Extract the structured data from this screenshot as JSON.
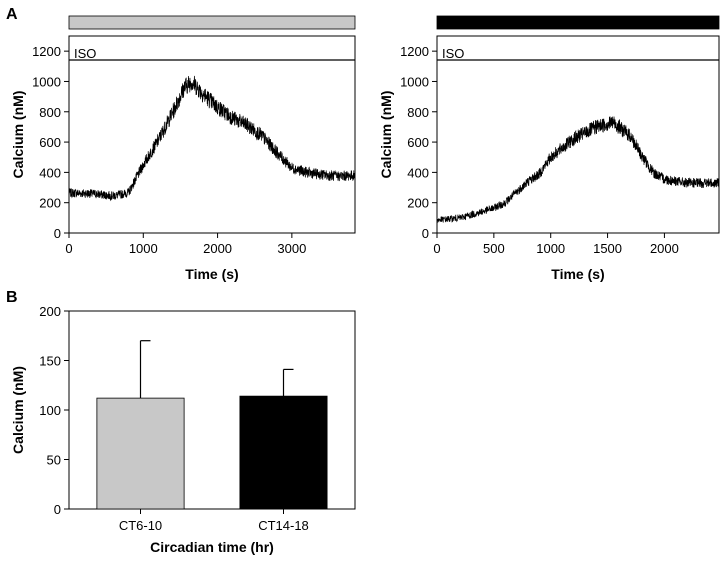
{
  "panels": {
    "a_label": "A",
    "b_label": "B"
  },
  "chart_data": [
    {
      "id": "A-left",
      "type": "line",
      "header_bar_color": "#c8c8c8",
      "annotation": "ISO",
      "xlabel": "Time (s)",
      "ylabel": "Calcium (nM)",
      "xlim": [
        0,
        3850
      ],
      "ylim": [
        0,
        1300
      ],
      "xticks": [
        0,
        1000,
        2000,
        3000
      ],
      "yticks": [
        0,
        200,
        400,
        600,
        800,
        1000,
        1200
      ],
      "grid": false,
      "series": [
        {
          "color": "#000000",
          "x": [
            0,
            300,
            600,
            800,
            1000,
            1200,
            1400,
            1550,
            1650,
            1800,
            2000,
            2200,
            2400,
            2600,
            2800,
            3000,
            3200,
            3400,
            3600,
            3850
          ],
          "y": [
            265,
            260,
            245,
            265,
            450,
            610,
            800,
            960,
            1000,
            920,
            830,
            760,
            710,
            640,
            530,
            430,
            400,
            385,
            375,
            380
          ]
        }
      ]
    },
    {
      "id": "A-right",
      "type": "line",
      "header_bar_color": "#000000",
      "annotation": "ISO",
      "xlabel": "Time (s)",
      "ylabel": "Calcium (nM)",
      "xlim": [
        0,
        2480
      ],
      "ylim": [
        0,
        1300
      ],
      "xticks": [
        0,
        500,
        1000,
        1500,
        2000
      ],
      "yticks": [
        0,
        200,
        400,
        600,
        800,
        1000,
        1200
      ],
      "grid": false,
      "series": [
        {
          "color": "#000000",
          "x": [
            0,
            200,
            350,
            500,
            600,
            700,
            800,
            900,
            1000,
            1200,
            1400,
            1550,
            1700,
            1800,
            1900,
            2000,
            2200,
            2480
          ],
          "y": [
            85,
            100,
            130,
            165,
            200,
            270,
            340,
            390,
            500,
            620,
            700,
            730,
            640,
            510,
            400,
            355,
            330,
            330
          ]
        }
      ]
    },
    {
      "id": "B",
      "type": "bar",
      "categories": [
        "CT6-10",
        "CT14-18"
      ],
      "values": [
        112,
        114
      ],
      "errors": [
        58,
        27
      ],
      "colors": [
        "#c8c8c8",
        "#000000"
      ],
      "xlabel": "Circadian time (hr)",
      "ylabel": "Calcium (nM)",
      "ylim": [
        0,
        200
      ],
      "yticks": [
        0,
        50,
        100,
        150,
        200
      ],
      "grid": false
    }
  ]
}
